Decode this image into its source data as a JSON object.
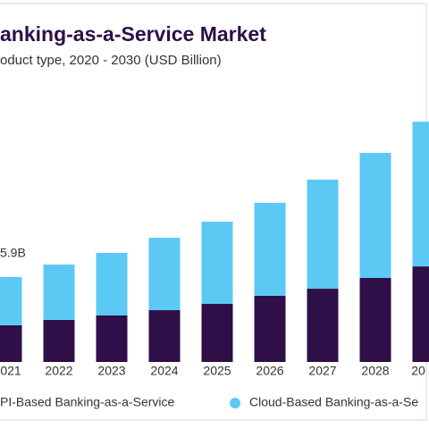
{
  "chart_data": {
    "type": "stacked-bar",
    "title": "anking-as-a-Service Market",
    "subtitle": "oduct type, 2020 - 2030 (USD Billion)",
    "categories": [
      "021",
      "2022",
      "2023",
      "2024",
      "2025",
      "2026",
      "2027",
      "2028",
      "20"
    ],
    "series": [
      {
        "name": "PI-Based Banking-as-a-Service",
        "color": "#2e0f47",
        "values": [
          2.55,
          2.92,
          3.23,
          3.6,
          4.04,
          4.6,
          5.09,
          5.84,
          6.64
        ]
      },
      {
        "name": "Cloud-Based Banking-as-a-Se",
        "color": "#5cc9f5",
        "values": [
          3.35,
          3.85,
          4.35,
          5.03,
          5.71,
          6.46,
          7.58,
          8.69,
          10.06
        ]
      }
    ],
    "annotations": [
      {
        "category": 0,
        "value": 5.9,
        "label": "5.9B"
      }
    ],
    "ylim": [
      0,
      25
    ]
  }
}
